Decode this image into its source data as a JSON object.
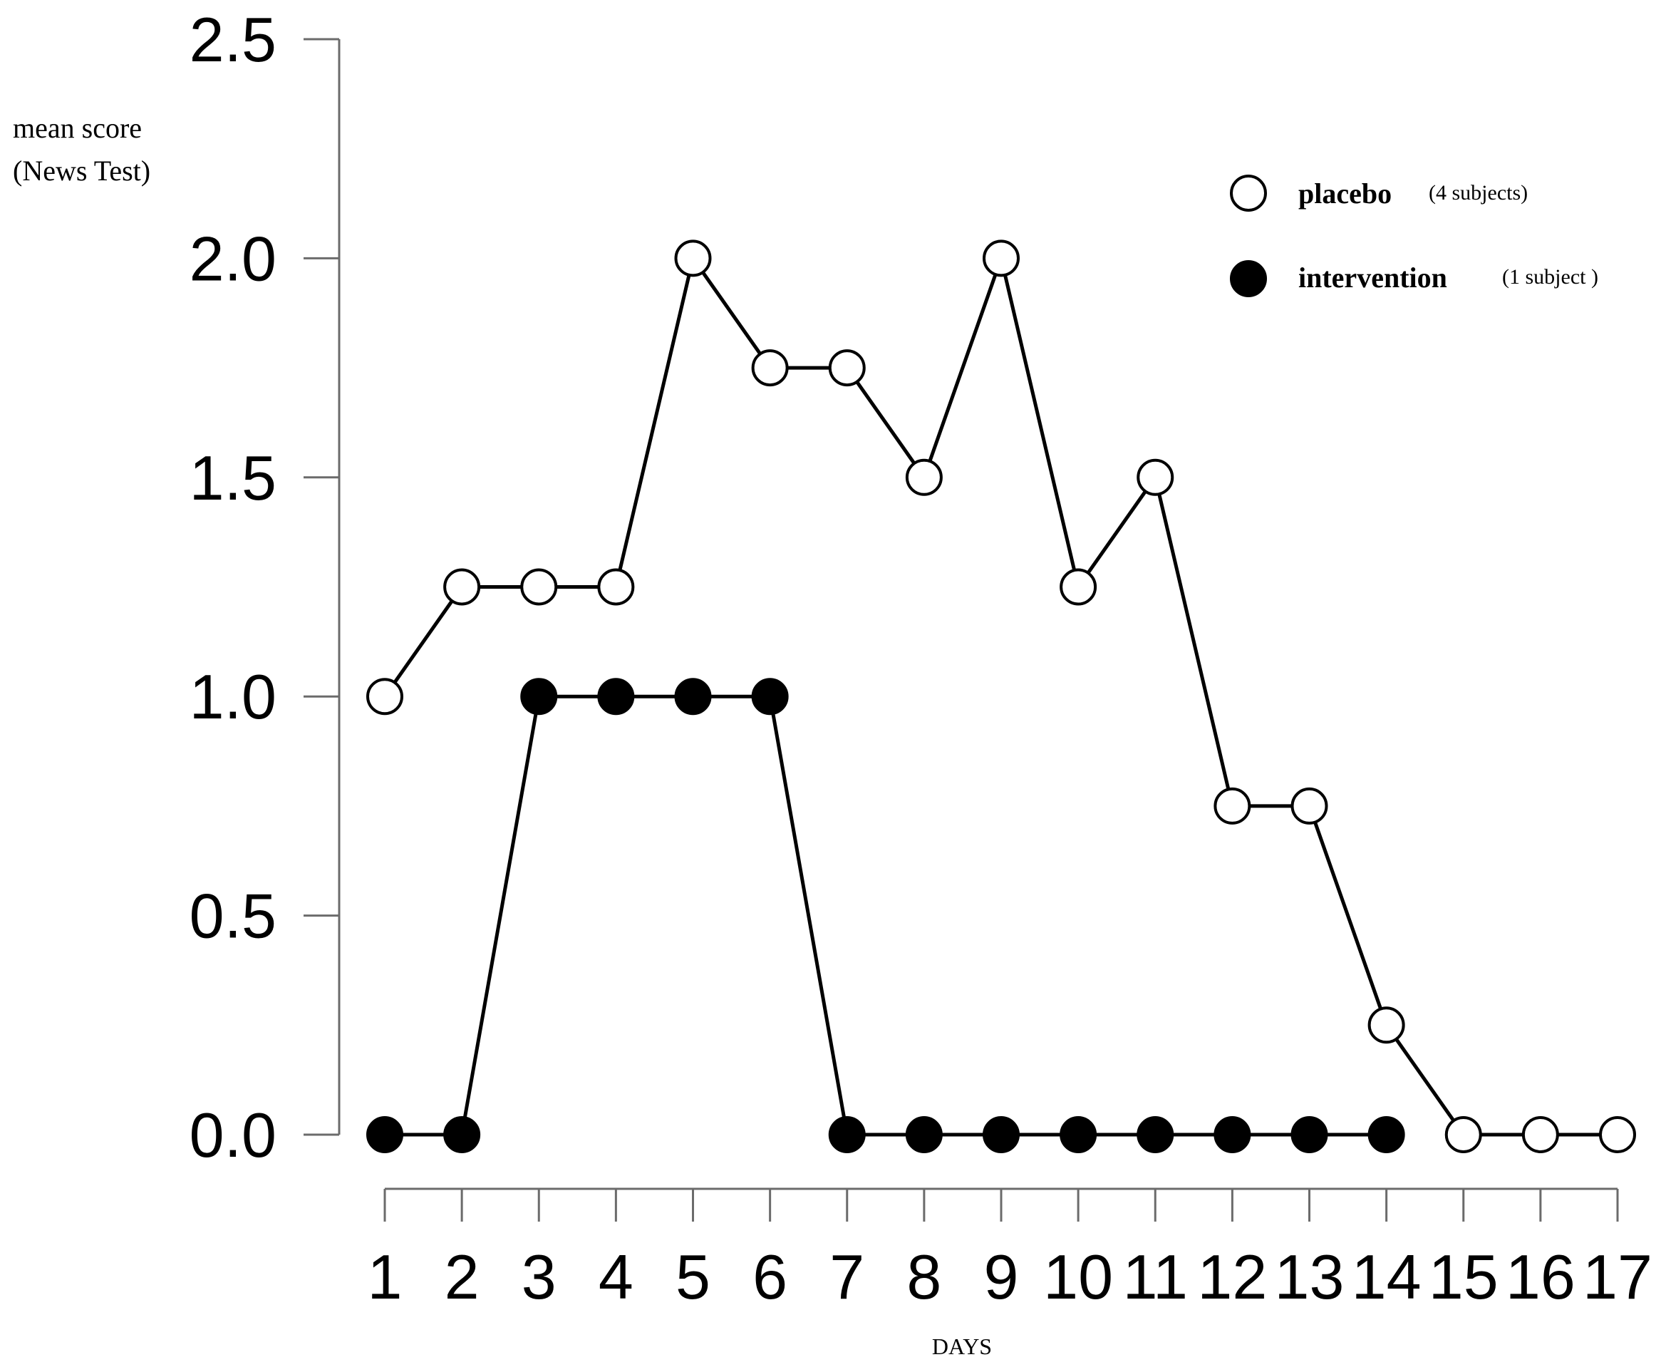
{
  "chart_data": {
    "type": "line",
    "ylabel_line1": "mean score",
    "ylabel_line2": "(News Test)",
    "xlabel": "DAYS",
    "ylim": [
      0,
      2.5
    ],
    "yticks": [
      "0.0",
      "0.5",
      "1.0",
      "1.5",
      "2.0",
      "2.5"
    ],
    "ytick_values": [
      0,
      0.5,
      1.0,
      1.5,
      2.0,
      2.5
    ],
    "x": [
      1,
      2,
      3,
      4,
      5,
      6,
      7,
      8,
      9,
      10,
      11,
      12,
      13,
      14,
      15,
      16,
      17
    ],
    "grid": false,
    "legend_position": "top-right",
    "series": [
      {
        "name": "placebo",
        "note": "(4 subjects)",
        "marker": "open-circle",
        "color": "#000000",
        "fill": "#ffffff",
        "x": [
          1,
          2,
          3,
          4,
          5,
          6,
          7,
          8,
          9,
          10,
          11,
          12,
          13,
          14,
          15,
          16,
          17
        ],
        "values": [
          1.0,
          1.25,
          1.25,
          1.25,
          2.0,
          1.75,
          1.75,
          1.5,
          2.0,
          1.25,
          1.5,
          0.75,
          0.75,
          0.25,
          0.0,
          0.0,
          0.0
        ]
      },
      {
        "name": "intervention",
        "note": "(1 subject )",
        "marker": "filled-circle",
        "color": "#000000",
        "fill": "#000000",
        "x": [
          1,
          2,
          3,
          4,
          5,
          6,
          7,
          8,
          9,
          10,
          11,
          12,
          13,
          14
        ],
        "values": [
          0.0,
          0.0,
          1.0,
          1.0,
          1.0,
          1.0,
          0.0,
          0.0,
          0.0,
          0.0,
          0.0,
          0.0,
          0.0,
          0.0
        ]
      }
    ]
  }
}
